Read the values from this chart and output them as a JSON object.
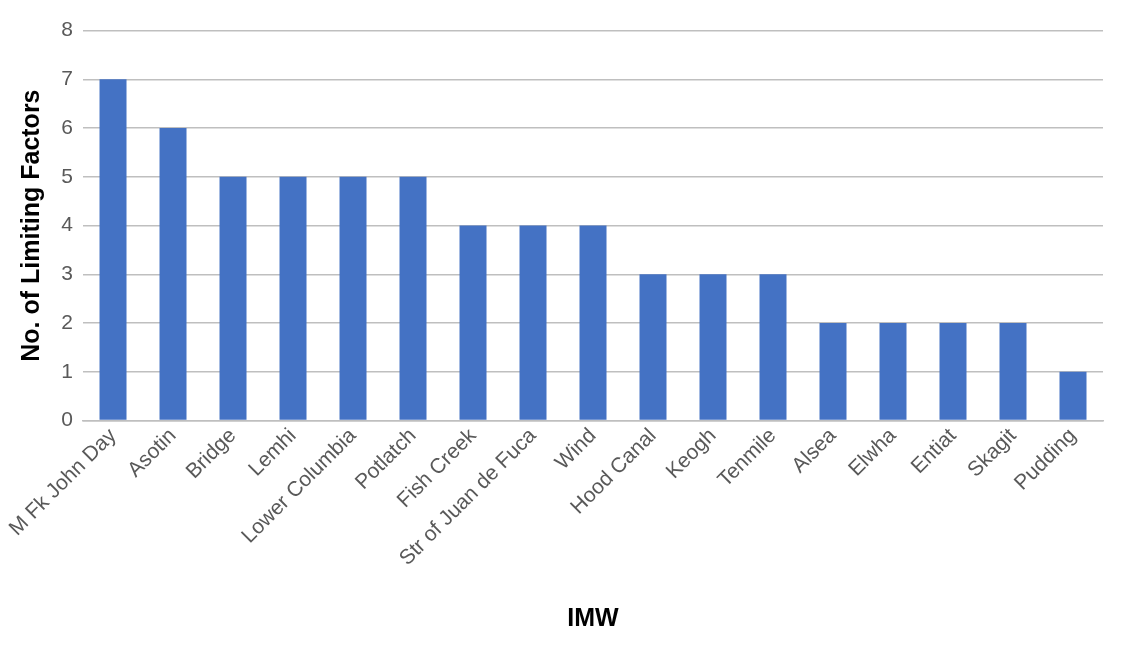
{
  "chart_data": {
    "type": "bar",
    "xlabel": "IMW",
    "ylabel": "No. of Limiting Factors",
    "categories": [
      "M Fk John Day",
      "Asotin",
      "Bridge",
      "Lemhi",
      "Lower Columbia",
      "Potlatch",
      "Fish Creek",
      "Str of Juan de Fuca",
      "Wind",
      "Hood Canal",
      "Keogh",
      "Tenmile",
      "Alsea",
      "Elwha",
      "Entiat",
      "Skagit",
      "Pudding"
    ],
    "values": [
      7,
      6,
      5,
      5,
      5,
      5,
      4,
      4,
      4,
      3,
      3,
      3,
      2,
      2,
      2,
      2,
      1
    ],
    "color": "#4472c4",
    "ylim": [
      0,
      8
    ],
    "yticks": [
      0,
      1,
      2,
      3,
      4,
      5,
      6,
      7,
      8
    ],
    "grid": "y",
    "legend": false
  }
}
